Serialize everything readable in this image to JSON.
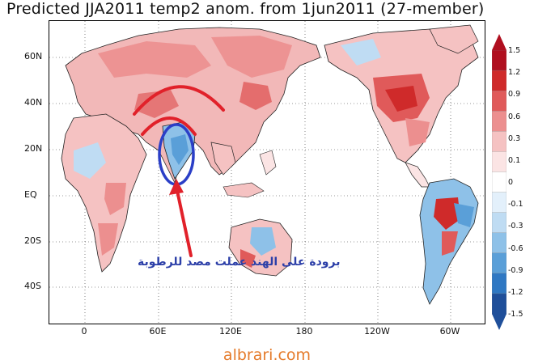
{
  "title": "Predicted JJA2011 temp2 anom. from 1jun2011 (27-member)",
  "map": {
    "lat_labels": [
      "60N",
      "40N",
      "20N",
      "EQ",
      "20S",
      "40S"
    ],
    "lon_labels": [
      "0",
      "60E",
      "120E",
      "180",
      "120W",
      "60W"
    ],
    "colorbar": {
      "labels": [
        "1.5",
        "1.2",
        "0.9",
        "0.6",
        "0.3",
        "0.1",
        "0",
        "-0.1",
        "-0.3",
        "-0.6",
        "-0.9",
        "-1.2",
        "-1.5"
      ],
      "colors": [
        "#b00f1f",
        "#cf2a2a",
        "#e05a5a",
        "#ec8f8f",
        "#f5c2c2",
        "#fbe4e4",
        "#ffffff",
        "#e3f0fb",
        "#bfdcf3",
        "#8ec1e8",
        "#5a9fd8",
        "#2f78c3",
        "#1f4f9a"
      ]
    },
    "annotation_text": "برودة على الهند عملت مصد للرطوبة",
    "annotation_color": "#2c3fa8",
    "marker_colors": {
      "arcs": "#e1212a",
      "arrow": "#e1212a",
      "ellipse": "#2b3fc7"
    }
  },
  "watermark": "albrari.com"
}
